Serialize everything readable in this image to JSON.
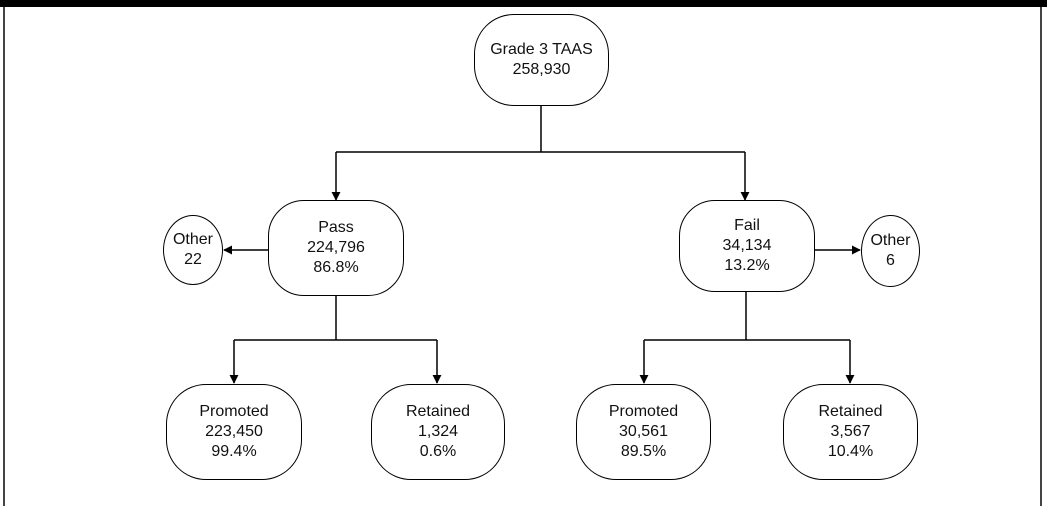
{
  "colors": {
    "line": "#000000",
    "frame": "#000000",
    "background": "#ffffff"
  },
  "root": {
    "title": "Grade 3 TAAS",
    "count": "258,930"
  },
  "pass": {
    "title": "Pass",
    "count": "224,796",
    "pct": "86.8%"
  },
  "fail": {
    "title": "Fail",
    "count": "34,134",
    "pct": "13.2%"
  },
  "pass_other": {
    "title": "Other",
    "count": "22"
  },
  "fail_other": {
    "title": "Other",
    "count": "6"
  },
  "pass_promoted": {
    "title": "Promoted",
    "count": "223,450",
    "pct": "99.4%"
  },
  "pass_retained": {
    "title": "Retained",
    "count": "1,324",
    "pct": "0.6%"
  },
  "fail_promoted": {
    "title": "Promoted",
    "count": "30,561",
    "pct": "89.5%"
  },
  "fail_retained": {
    "title": "Retained",
    "count": "3,567",
    "pct": "10.4%"
  }
}
